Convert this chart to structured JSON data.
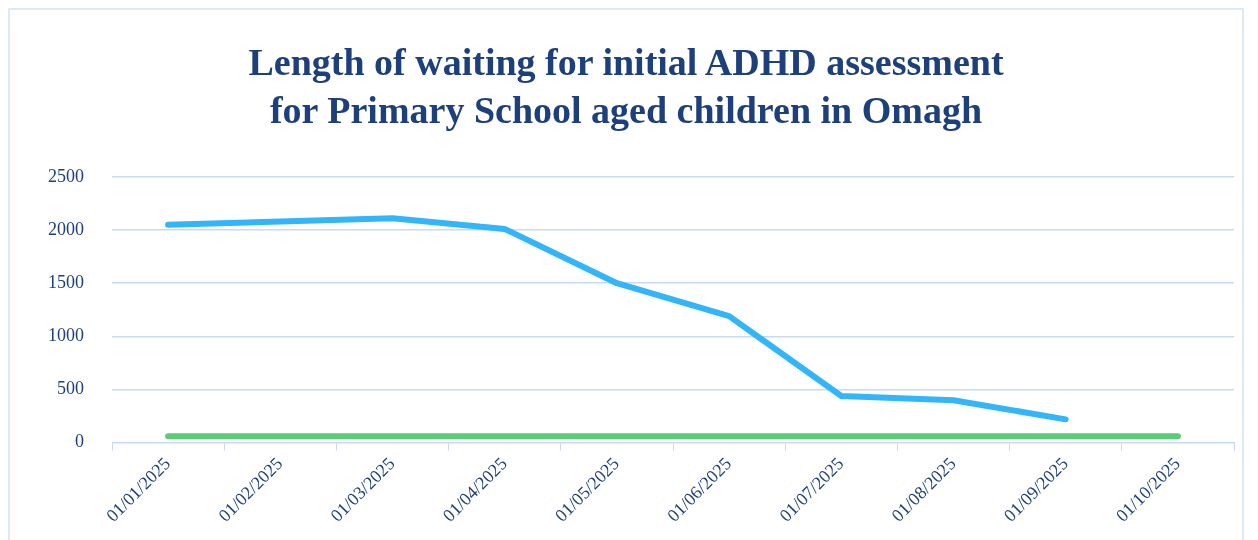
{
  "chart_data": {
    "type": "line",
    "title": [
      "Length of waiting for initial ADHD assessment",
      "for Primary School aged children in Omagh"
    ],
    "categories": [
      "01/01/2025",
      "01/02/2025",
      "01/03/2025",
      "01/04/2025",
      "01/05/2025",
      "01/06/2025",
      "01/07/2025",
      "01/08/2025",
      "01/09/2025",
      "01/10/2025"
    ],
    "series": [
      {
        "color": "#33b5fa",
        "values": [
          2050,
          2080,
          2110,
          2010,
          1500,
          1190,
          440,
          400,
          220,
          null
        ]
      },
      {
        "color": "#5ccb75",
        "values": [
          60,
          60,
          60,
          60,
          60,
          60,
          60,
          60,
          60,
          60
        ]
      }
    ],
    "ylim": [
      0,
      2500
    ],
    "yticks": [
      0,
      500,
      1000,
      1500,
      2000,
      2500
    ],
    "grid": "y",
    "legend": false,
    "marker": "none",
    "line_style": "solid"
  }
}
